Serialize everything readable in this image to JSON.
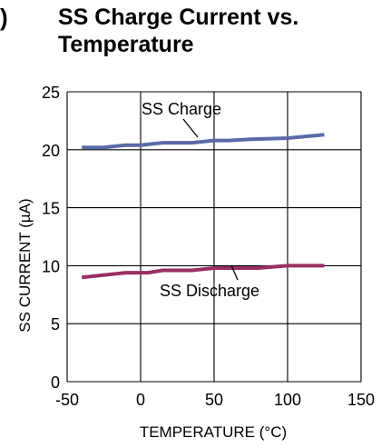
{
  "header": {
    "left_mark": ")",
    "title_line1": "SS Charge Current vs.",
    "title_line2": "Temperature"
  },
  "chart_data": {
    "type": "line",
    "title": "SS Charge Current vs. Temperature",
    "xlabel": "TEMPERATURE (°C)",
    "ylabel": "SS CURRENT (µA)",
    "xlim": [
      -50,
      150
    ],
    "ylim": [
      0,
      25
    ],
    "xticks": [
      -50,
      0,
      50,
      100,
      150
    ],
    "yticks": [
      0,
      5,
      10,
      15,
      20,
      25
    ],
    "grid": true,
    "series": [
      {
        "name": "SS Charge",
        "color": "#5b6aa6",
        "x": [
          -40,
          -25,
          -10,
          0,
          15,
          35,
          50,
          60,
          75,
          100,
          125
        ],
        "y": [
          20.2,
          20.2,
          20.4,
          20.4,
          20.6,
          20.6,
          20.8,
          20.8,
          20.9,
          21.0,
          21.3
        ]
      },
      {
        "name": "SS Discharge",
        "color": "#9a2f63",
        "x": [
          -40,
          -10,
          5,
          15,
          35,
          50,
          65,
          80,
          100,
          125
        ],
        "y": [
          9.0,
          9.4,
          9.4,
          9.6,
          9.6,
          9.8,
          9.8,
          9.8,
          10.0,
          10.0
        ]
      }
    ]
  }
}
